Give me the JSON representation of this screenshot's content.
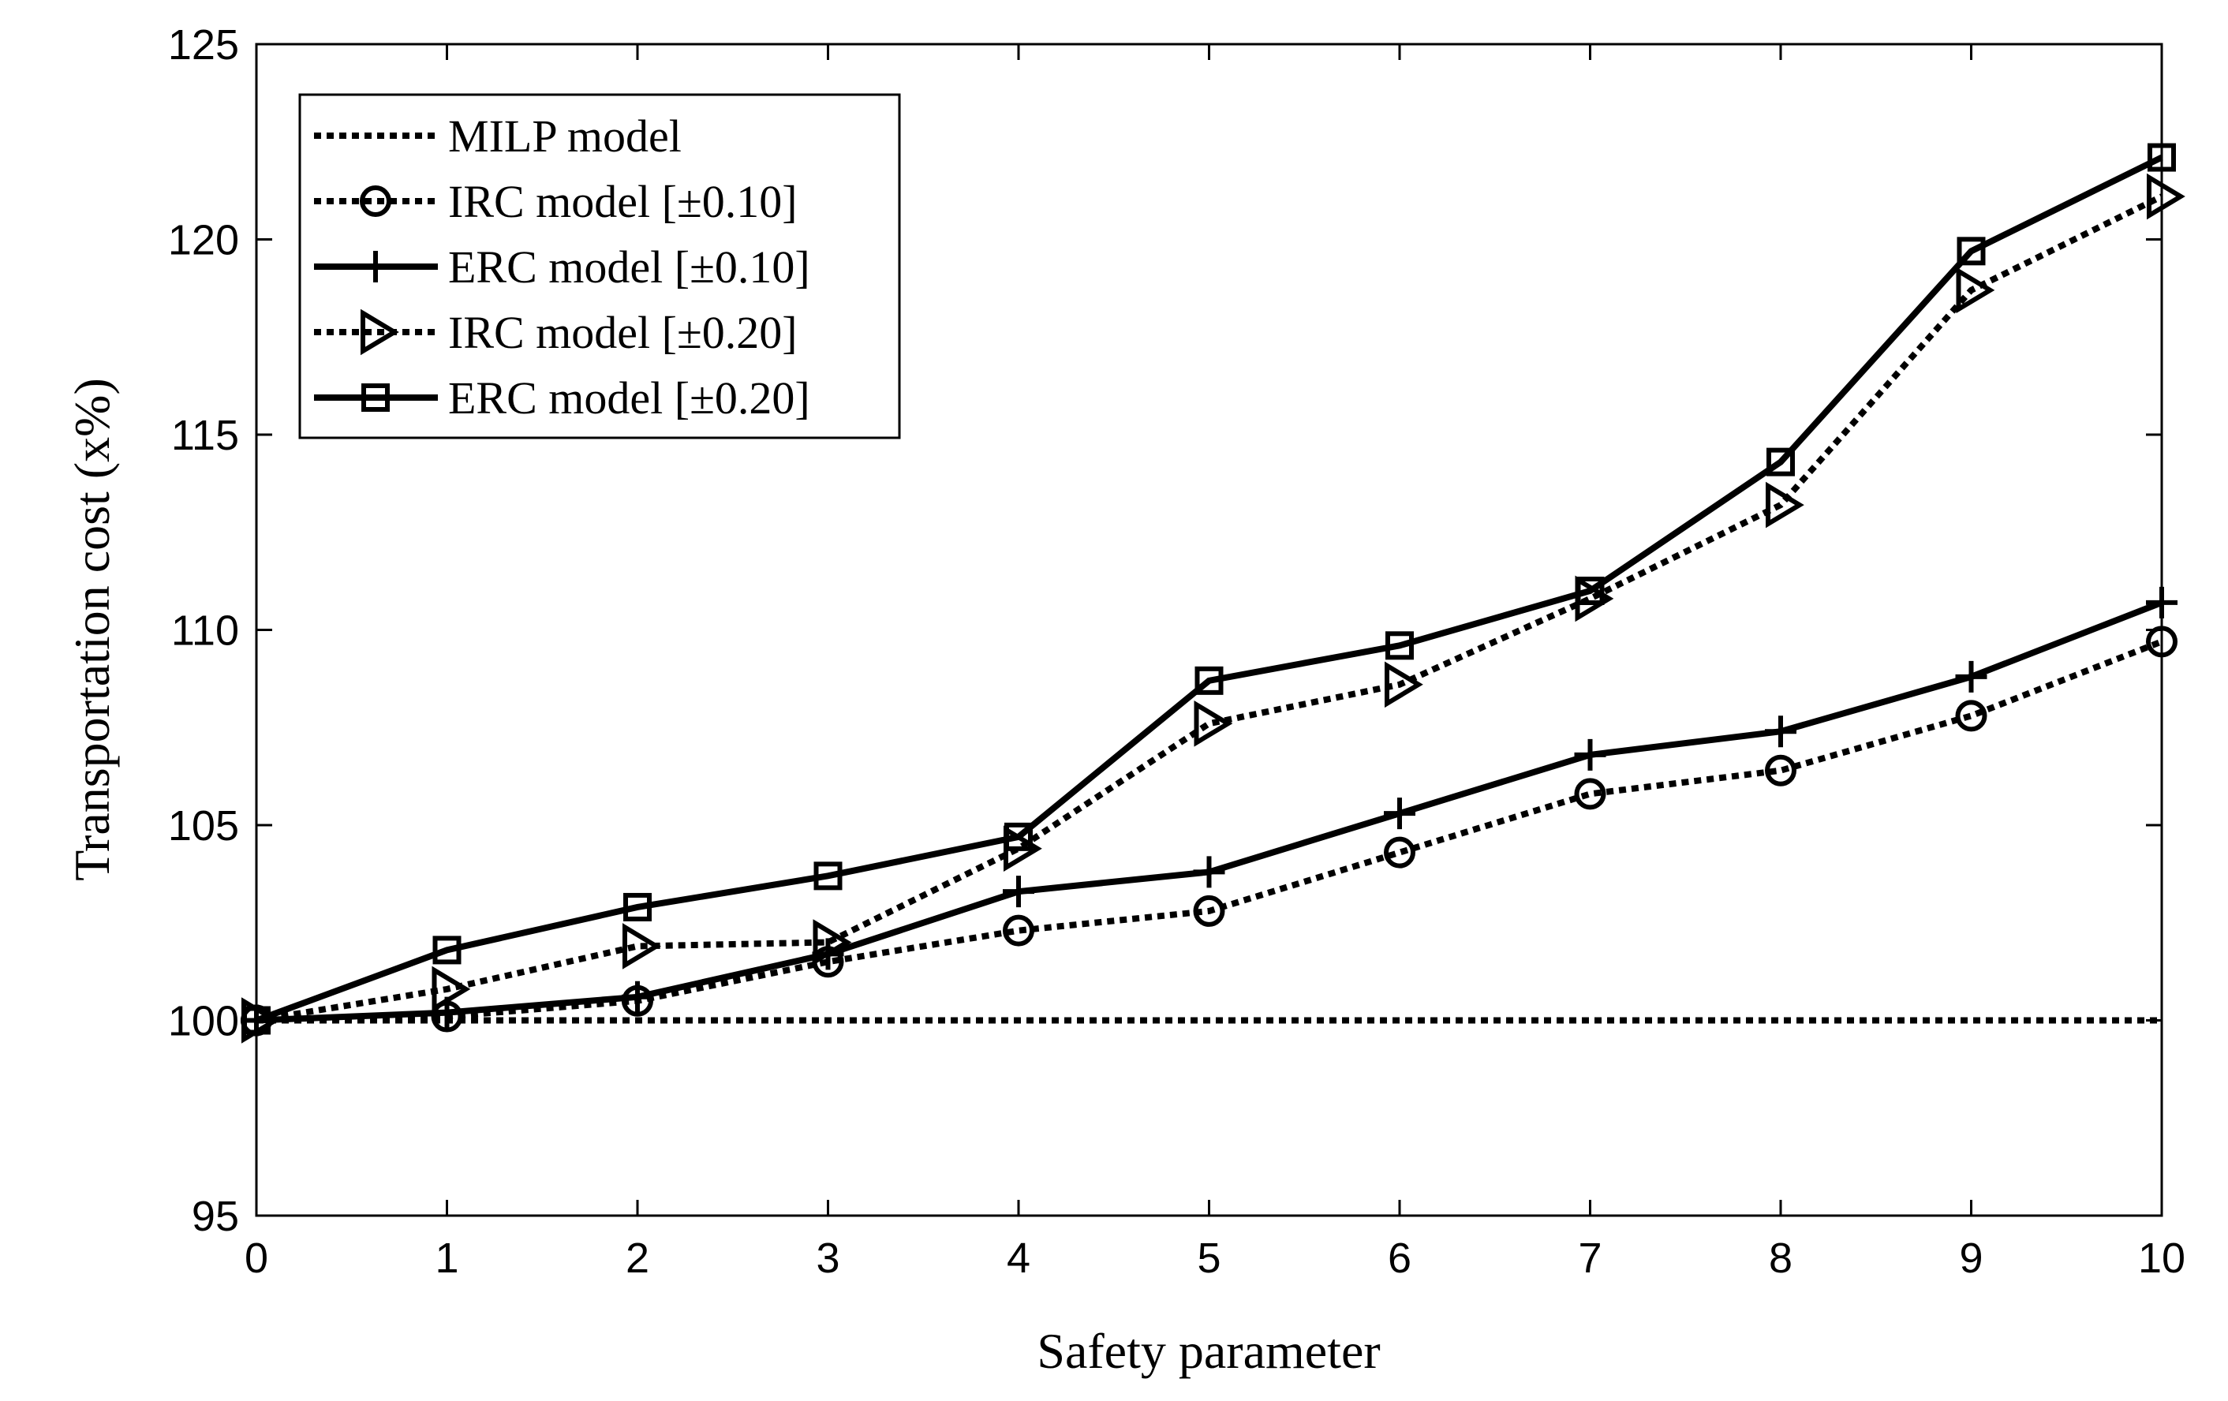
{
  "chart_data": {
    "type": "line",
    "title": "",
    "xlabel": "Safety parameter",
    "ylabel": "Transportation cost (x%)",
    "xlim": [
      0,
      10
    ],
    "ylim": [
      95,
      125
    ],
    "xticks": [
      "0",
      "1",
      "2",
      "3",
      "4",
      "5",
      "6",
      "7",
      "8",
      "9",
      "10"
    ],
    "yticks": [
      "95",
      "100",
      "105",
      "110",
      "115",
      "120",
      "125"
    ],
    "grid": false,
    "legend_position": "top-left",
    "x": [
      0,
      1,
      2,
      3,
      4,
      5,
      6,
      7,
      8,
      9,
      10
    ],
    "series": [
      {
        "name": "MILP model",
        "line": "dotted",
        "marker": "none",
        "values": [
          100,
          100,
          100,
          100,
          100,
          100,
          100,
          100,
          100,
          100,
          100
        ]
      },
      {
        "name": "IRC model  [±0.10]",
        "line": "dotted",
        "marker": "circle",
        "values": [
          100,
          100.1,
          100.5,
          101.5,
          102.3,
          102.8,
          104.3,
          105.8,
          106.4,
          107.8,
          109.7
        ]
      },
      {
        "name": "ERC model [±0.10]",
        "line": "solid",
        "marker": "plus",
        "values": [
          100,
          100.2,
          100.6,
          101.7,
          103.3,
          103.8,
          105.3,
          106.8,
          107.4,
          108.8,
          110.7
        ]
      },
      {
        "name": "IRC model  [±0.20]",
        "line": "dotted",
        "marker": "triangle-right",
        "values": [
          100,
          100.8,
          101.9,
          102.0,
          104.4,
          107.6,
          108.6,
          110.8,
          113.2,
          118.7,
          121.1
        ]
      },
      {
        "name": "ERC model [±0.20]",
        "line": "solid",
        "marker": "square",
        "values": [
          100,
          101.8,
          102.9,
          103.7,
          104.7,
          108.7,
          109.6,
          111.0,
          114.3,
          119.7,
          122.1
        ]
      }
    ],
    "colors": {
      "line": "#000000",
      "background": "#ffffff"
    }
  }
}
